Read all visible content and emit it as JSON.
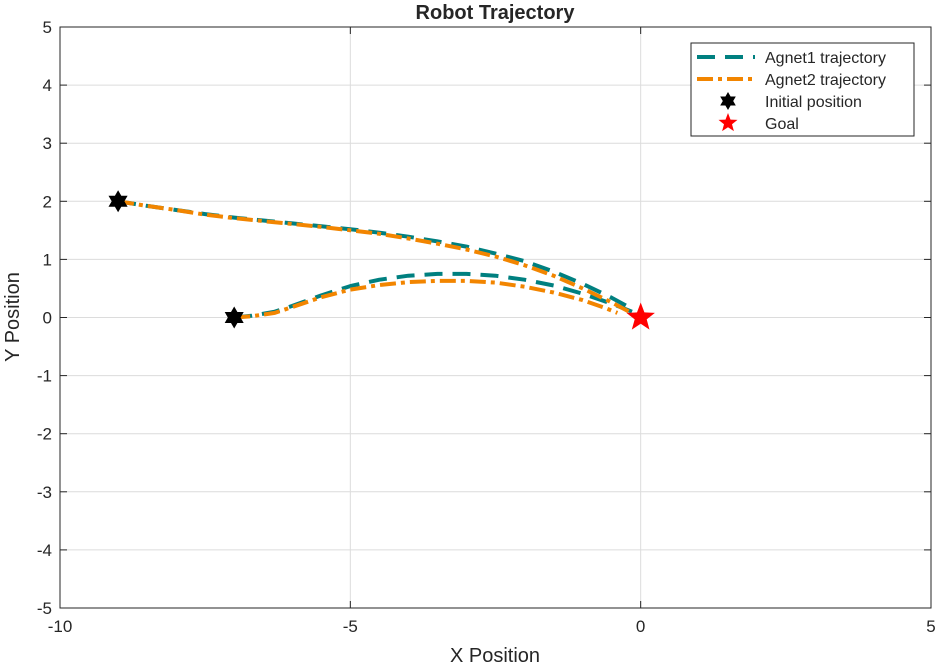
{
  "chart_data": {
    "type": "line",
    "title": "Robot Trajectory",
    "xlabel": "X Position",
    "ylabel": "Y Position",
    "xlim": [
      -10,
      5
    ],
    "ylim": [
      -5,
      5
    ],
    "xticks": [
      -10,
      -5,
      0,
      5
    ],
    "yticks": [
      -5,
      -4,
      -3,
      -2,
      -1,
      0,
      1,
      2,
      3,
      4,
      5
    ],
    "xtick_labels": [
      "-10",
      "-5",
      "0",
      "5"
    ],
    "ytick_labels": [
      "-5",
      "-4",
      "-3",
      "-2",
      "-1",
      "0",
      "1",
      "2",
      "3",
      "4",
      "5"
    ],
    "grid": true,
    "legend_position": "top-right",
    "legend": [
      "Agnet1 trajectory",
      "Agnet2 trajectory",
      "Initial position",
      "Goal"
    ],
    "series": [
      {
        "name": "Agnet1 trajectory",
        "style": "dashed",
        "color": "#008080",
        "paths": [
          {
            "x": [
              -9,
              -8.5,
              -8,
              -7.5,
              -7,
              -6.5,
              -6,
              -5.5,
              -5,
              -4.5,
              -4,
              -3.5,
              -3,
              -2.5,
              -2,
              -1.5,
              -1,
              -0.5,
              -0.15
            ],
            "y": [
              2.0,
              1.92,
              1.85,
              1.78,
              1.72,
              1.67,
              1.62,
              1.57,
              1.52,
              1.46,
              1.39,
              1.31,
              1.22,
              1.1,
              0.97,
              0.79,
              0.58,
              0.34,
              0.15
            ]
          },
          {
            "x": [
              -7,
              -6.7,
              -6.3,
              -6,
              -5.5,
              -5,
              -4.5,
              -4,
              -3.5,
              -3,
              -2.5,
              -2,
              -1.5,
              -1,
              -0.5,
              -0.15
            ],
            "y": [
              0.0,
              0.03,
              0.1,
              0.2,
              0.38,
              0.54,
              0.65,
              0.72,
              0.75,
              0.75,
              0.72,
              0.65,
              0.55,
              0.41,
              0.24,
              0.1
            ]
          }
        ]
      },
      {
        "name": "Agnet2 trajectory",
        "style": "dash-dot",
        "color": "#F28500",
        "paths": [
          {
            "x": [
              -9,
              -8.5,
              -8,
              -7.5,
              -7,
              -6.5,
              -6,
              -5.5,
              -5,
              -4.5,
              -4,
              -3.5,
              -3,
              -2.5,
              -2,
              -1.5,
              -1,
              -0.5,
              -0.2
            ],
            "y": [
              2.0,
              1.92,
              1.85,
              1.77,
              1.71,
              1.66,
              1.61,
              1.56,
              1.5,
              1.44,
              1.36,
              1.27,
              1.17,
              1.05,
              0.9,
              0.72,
              0.5,
              0.26,
              0.1
            ]
          },
          {
            "x": [
              -7,
              -6.7,
              -6.3,
              -6,
              -5.5,
              -5,
              -4.5,
              -4,
              -3.5,
              -3,
              -2.5,
              -2,
              -1.5,
              -1,
              -0.6,
              -0.4
            ],
            "y": [
              0.0,
              0.02,
              0.08,
              0.18,
              0.35,
              0.48,
              0.56,
              0.61,
              0.63,
              0.63,
              0.6,
              0.53,
              0.43,
              0.3,
              0.16,
              0.08
            ]
          }
        ]
      }
    ],
    "markers": [
      {
        "name": "Initial position",
        "shape": "hexagram",
        "color": "#000000",
        "points": [
          {
            "x": -9,
            "y": 2
          },
          {
            "x": -7,
            "y": 0
          }
        ]
      },
      {
        "name": "Goal",
        "shape": "pentagram",
        "color": "#FF0000",
        "points": [
          {
            "x": 0,
            "y": 0
          }
        ]
      }
    ]
  }
}
